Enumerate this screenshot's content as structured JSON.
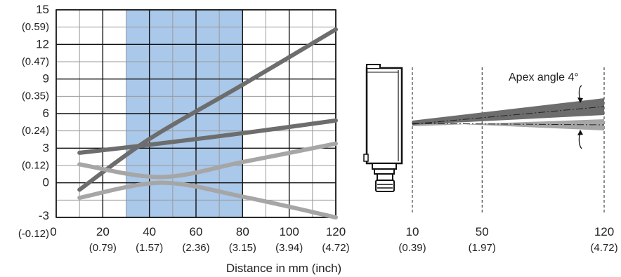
{
  "chart_data": {
    "type": "line",
    "xlabel": "Distance in mm (inch)",
    "xlim": [
      0,
      120
    ],
    "ylim": [
      -3,
      15
    ],
    "highlight_x_range": [
      30,
      80
    ],
    "highlight_color": "#a9c8ea",
    "grid": true,
    "y_ticks": [
      {
        "value": 15,
        "mm": "15",
        "inch": "(0.59)"
      },
      {
        "value": 12,
        "mm": "12",
        "inch": "(0.47)"
      },
      {
        "value": 9,
        "mm": "9",
        "inch": "(0.35)"
      },
      {
        "value": 6,
        "mm": "6",
        "inch": "(0.24)"
      },
      {
        "value": 3,
        "mm": "3",
        "inch": "(0.12)"
      },
      {
        "value": 0,
        "mm": "0",
        "inch": ""
      },
      {
        "value": -3,
        "mm": "-3",
        "inch": "(-0.12)"
      }
    ],
    "x_ticks": [
      {
        "value": 0,
        "mm": "0",
        "inch": ""
      },
      {
        "value": 20,
        "mm": "20",
        "inch": "(0.79)"
      },
      {
        "value": 40,
        "mm": "40",
        "inch": "(1.57)"
      },
      {
        "value": 60,
        "mm": "60",
        "inch": "(2.36)"
      },
      {
        "value": 80,
        "mm": "80",
        "inch": "(3.15)"
      },
      {
        "value": 100,
        "mm": "100",
        "inch": "(3.94)"
      },
      {
        "value": 120,
        "mm": "120",
        "inch": "(4.72)"
      }
    ],
    "series": [
      {
        "color": "#6d6d6d",
        "x": [
          10,
          40,
          80,
          120
        ],
        "y": [
          -0.6,
          3.8,
          8.5,
          13.3
        ]
      },
      {
        "color": "#6d6d6d",
        "x": [
          10,
          40,
          80,
          120
        ],
        "y": [
          2.6,
          3.3,
          4.3,
          5.4
        ]
      },
      {
        "color": "#a6a6a6",
        "x": [
          10,
          45,
          80,
          120
        ],
        "y": [
          1.6,
          0.5,
          1.8,
          3.4
        ]
      },
      {
        "color": "#a6a6a6",
        "x": [
          10,
          45,
          80,
          120
        ],
        "y": [
          -1.3,
          0,
          -1.2,
          -3.0
        ]
      }
    ]
  },
  "diagram": {
    "apex_label": "Apex angle 4°",
    "distance_marks": [
      {
        "value": 10,
        "mm": "10",
        "inch": "(0.39)"
      },
      {
        "value": 50,
        "mm": "50",
        "inch": "(1.97)"
      },
      {
        "value": 120,
        "mm": "120",
        "inch": "(4.72)"
      }
    ]
  }
}
